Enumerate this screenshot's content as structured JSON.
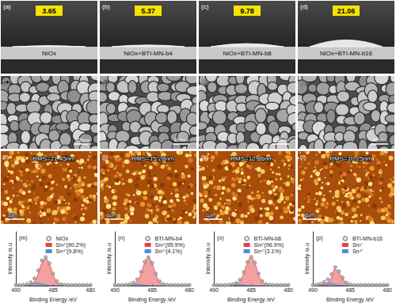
{
  "figure": {
    "contact_angle": [
      {
        "label": "(a)",
        "value": 3.65,
        "sample": "NiOx"
      },
      {
        "label": "(b)",
        "value": 5.37,
        "sample": "NiOx+BTI-MN-b4"
      },
      {
        "label": "(c)",
        "value": 9.78,
        "sample": "NiOx+BTI-MN-b8"
      },
      {
        "label": "(d)",
        "value": 21.06,
        "sample": "NiOx+BTI-MN-b16"
      }
    ],
    "sem": [
      {
        "label": "(e)",
        "scale_bar": "100nm"
      },
      {
        "label": "(f)",
        "scale_bar": "100nm"
      },
      {
        "label": "(g)",
        "scale_bar": "100nm"
      },
      {
        "label": "(h)",
        "scale_bar": "100nm"
      }
    ],
    "afm": [
      {
        "label": "(i)",
        "rms": "RMS=21.45nm",
        "scale_bar": "1μm"
      },
      {
        "label": "(j)",
        "rms": "RMS=15.28nm",
        "scale_bar": "1μm"
      },
      {
        "label": "(k)",
        "rms": "RMS=12.86nm",
        "scale_bar": "1μm"
      },
      {
        "label": "(l)",
        "rms": "RMS=10.25nm",
        "scale_bar": "1μm"
      }
    ]
  },
  "chart_data": [
    {
      "type": "line",
      "title": "(m)",
      "x_label": "Binding Energy /eV",
      "y_label": "Intensity /a.u",
      "x": [
        490,
        489.5,
        489,
        488.5,
        488,
        487.5,
        487,
        486.5,
        486,
        485.5,
        485,
        484.5,
        484,
        483.5,
        483,
        482.5,
        482,
        481.5,
        481,
        480.5,
        480
      ],
      "xlim": [
        490,
        480
      ],
      "xticks": [
        490,
        485,
        480
      ],
      "ylim": [
        0,
        180
      ],
      "tick_labels": "x",
      "legend": "upper right",
      "series": [
        {
          "name": "NiOx",
          "type": "scatter",
          "marker": "open_circle",
          "color": "#8c8c8c",
          "values": [
            2,
            2,
            3,
            5,
            11,
            24,
            51,
            84,
            95,
            75,
            40,
            15,
            5,
            3,
            2,
            2,
            2,
            2,
            2,
            2,
            2
          ]
        },
        {
          "name": "Sn²⁺(90.2%)",
          "type": "area",
          "color": "#e8413f",
          "values": [
            0,
            0,
            0,
            1,
            4,
            14,
            40,
            76,
            90,
            72,
            38,
            13,
            3,
            1,
            0,
            0,
            0,
            0,
            0,
            0,
            0
          ]
        },
        {
          "name": "Sn⁴⁺(9.8%)",
          "type": "area",
          "color": "#4a90d9",
          "values": [
            0,
            0,
            1,
            2,
            5,
            8,
            9,
            6,
            3,
            1,
            0,
            0,
            0,
            0,
            0,
            0,
            0,
            0,
            0,
            0,
            0
          ]
        }
      ]
    },
    {
      "type": "line",
      "title": "(n)",
      "x_label": "Binding Energy /eV",
      "y_label": "Intensity /a.u",
      "x": [
        490,
        489.5,
        489,
        488.5,
        488,
        487.5,
        487,
        486.5,
        486,
        485.5,
        485,
        484.5,
        484,
        483.5,
        483,
        482.5,
        482,
        481.5,
        481,
        480.5,
        480
      ],
      "xlim": [
        490,
        480
      ],
      "xticks": [
        490,
        485,
        480
      ],
      "ylim": [
        0,
        180
      ],
      "tick_labels": "x",
      "legend": "upper right",
      "series": [
        {
          "name": "BTI-MN-b4",
          "type": "scatter",
          "marker": "open_circle",
          "color": "#8c8c8c",
          "values": [
            2,
            2,
            2,
            3,
            5,
            10,
            21,
            46,
            80,
            95,
            76,
            40,
            15,
            5,
            3,
            2,
            2,
            2,
            2,
            2,
            2
          ]
        },
        {
          "name": "Sn²⁺(95.9%)",
          "type": "area",
          "color": "#e8413f",
          "values": [
            0,
            0,
            0,
            0,
            1,
            4,
            14,
            40,
            76,
            92,
            74,
            38,
            13,
            3,
            1,
            0,
            0,
            0,
            0,
            0,
            0
          ]
        },
        {
          "name": "Sn⁴⁺(4.1%)",
          "type": "area",
          "color": "#4a90d9",
          "values": [
            0,
            0,
            0,
            1,
            2,
            4,
            5,
            4,
            2,
            1,
            0,
            0,
            0,
            0,
            0,
            0,
            0,
            0,
            0,
            0,
            0
          ]
        }
      ]
    },
    {
      "type": "line",
      "title": "(o)",
      "x_label": "Binding Energy /eV",
      "y_label": "Intensity /a.u",
      "x": [
        490,
        489.5,
        489,
        488.5,
        488,
        487.5,
        487,
        486.5,
        486,
        485.5,
        485,
        484.5,
        484,
        483.5,
        483,
        482.5,
        482,
        481.5,
        481,
        480.5,
        480
      ],
      "xlim": [
        490,
        480
      ],
      "xticks": [
        490,
        485,
        480
      ],
      "ylim": [
        0,
        180
      ],
      "tick_labels": "x",
      "legend": "upper right",
      "series": [
        {
          "name": "BTI-MN-b8",
          "type": "scatter",
          "marker": "open_circle",
          "color": "#8c8c8c",
          "values": [
            2,
            2,
            2,
            2,
            3,
            5,
            9,
            20,
            45,
            79,
            96,
            77,
            40,
            15,
            5,
            3,
            2,
            2,
            2,
            2,
            2
          ]
        },
        {
          "name": "Sn²⁺(96.9%)",
          "type": "area",
          "color": "#e8413f",
          "values": [
            0,
            0,
            0,
            0,
            0,
            1,
            4,
            14,
            40,
            76,
            94,
            75,
            38,
            13,
            3,
            1,
            0,
            0,
            0,
            0,
            0
          ]
        },
        {
          "name": "Sn⁴⁺(3.1%)",
          "type": "area",
          "color": "#4a90d9",
          "values": [
            0,
            0,
            0,
            0,
            1,
            2,
            3,
            4,
            3,
            1,
            0,
            0,
            0,
            0,
            0,
            0,
            0,
            0,
            0,
            0,
            0
          ]
        }
      ]
    },
    {
      "type": "line",
      "title": "(p)",
      "x_label": "Binding Energy /eV",
      "y_label": "Intensity /a.u",
      "x": [
        490,
        489.5,
        489,
        488.5,
        488,
        487.5,
        487,
        486.5,
        486,
        485.5,
        485,
        484.5,
        484,
        483.5,
        483,
        482.5,
        482,
        481.5,
        481,
        480.5,
        480
      ],
      "xlim": [
        490,
        480
      ],
      "xticks": [
        490,
        485,
        480
      ],
      "ylim": [
        0,
        180
      ],
      "tick_labels": "x",
      "legend": "upper right",
      "series": [
        {
          "name": "BTI-MN-b16",
          "type": "scatter",
          "marker": "open_circle",
          "color": "#8c8c8c",
          "values": [
            2,
            3,
            6,
            12,
            21,
            38,
            62,
            48,
            27,
            10,
            4,
            2,
            2,
            2,
            2,
            2,
            2,
            2,
            2,
            2,
            2
          ]
        },
        {
          "name": "Sn²⁺",
          "type": "area",
          "color": "#e8413f",
          "values": [
            0,
            0,
            1,
            3,
            9,
            28,
            55,
            44,
            24,
            8,
            2,
            0,
            0,
            0,
            0,
            0,
            0,
            0,
            0,
            0,
            0
          ]
        },
        {
          "name": "Sn⁴⁺",
          "type": "area",
          "color": "#4a90d9",
          "values": [
            0,
            1,
            3,
            7,
            10,
            8,
            5,
            2,
            1,
            0,
            0,
            0,
            0,
            0,
            0,
            0,
            0,
            0,
            0,
            0,
            0
          ]
        }
      ]
    }
  ]
}
